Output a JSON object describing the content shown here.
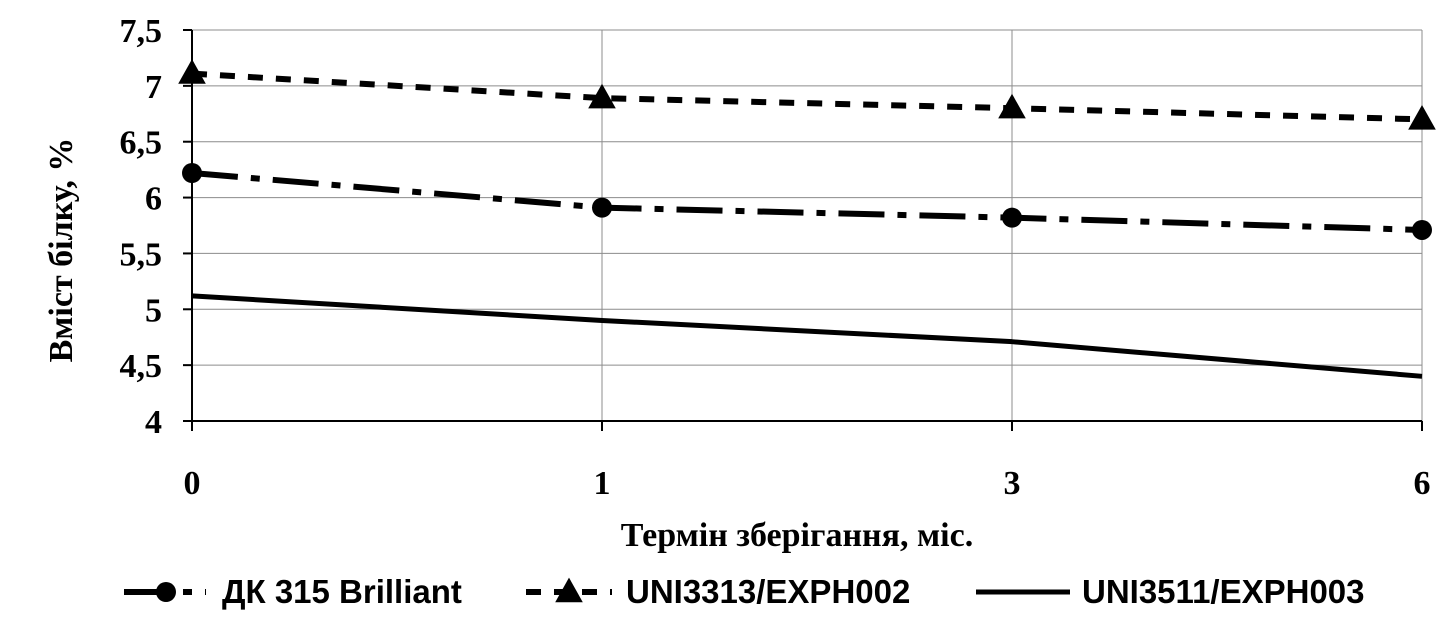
{
  "chart_data": {
    "type": "line",
    "categories": [
      "0",
      "1",
      "3",
      "6"
    ],
    "xlabel": "Термін зберігання, міс.",
    "ylabel": "Вміст білку, %",
    "ylim": [
      4,
      7.5
    ],
    "yticks": [
      "4",
      "4,5",
      "5",
      "5,5",
      "6",
      "6,5",
      "7",
      "7,5"
    ],
    "grid": true,
    "legend_position": "bottom",
    "series": [
      {
        "name": "ДК 315 Brilliant",
        "values": [
          6.22,
          5.91,
          5.82,
          5.71
        ],
        "marker": "circle",
        "line_style": "dash-dot",
        "color": "#000000"
      },
      {
        "name": "UNI3313/EXPH002",
        "values": [
          7.11,
          6.89,
          6.8,
          6.7
        ],
        "marker": "triangle",
        "line_style": "dashed",
        "color": "#000000"
      },
      {
        "name": "UNI3511/EXPH003",
        "values": [
          5.12,
          4.9,
          4.71,
          4.4
        ],
        "marker": "none",
        "line_style": "solid",
        "color": "#000000"
      }
    ]
  }
}
